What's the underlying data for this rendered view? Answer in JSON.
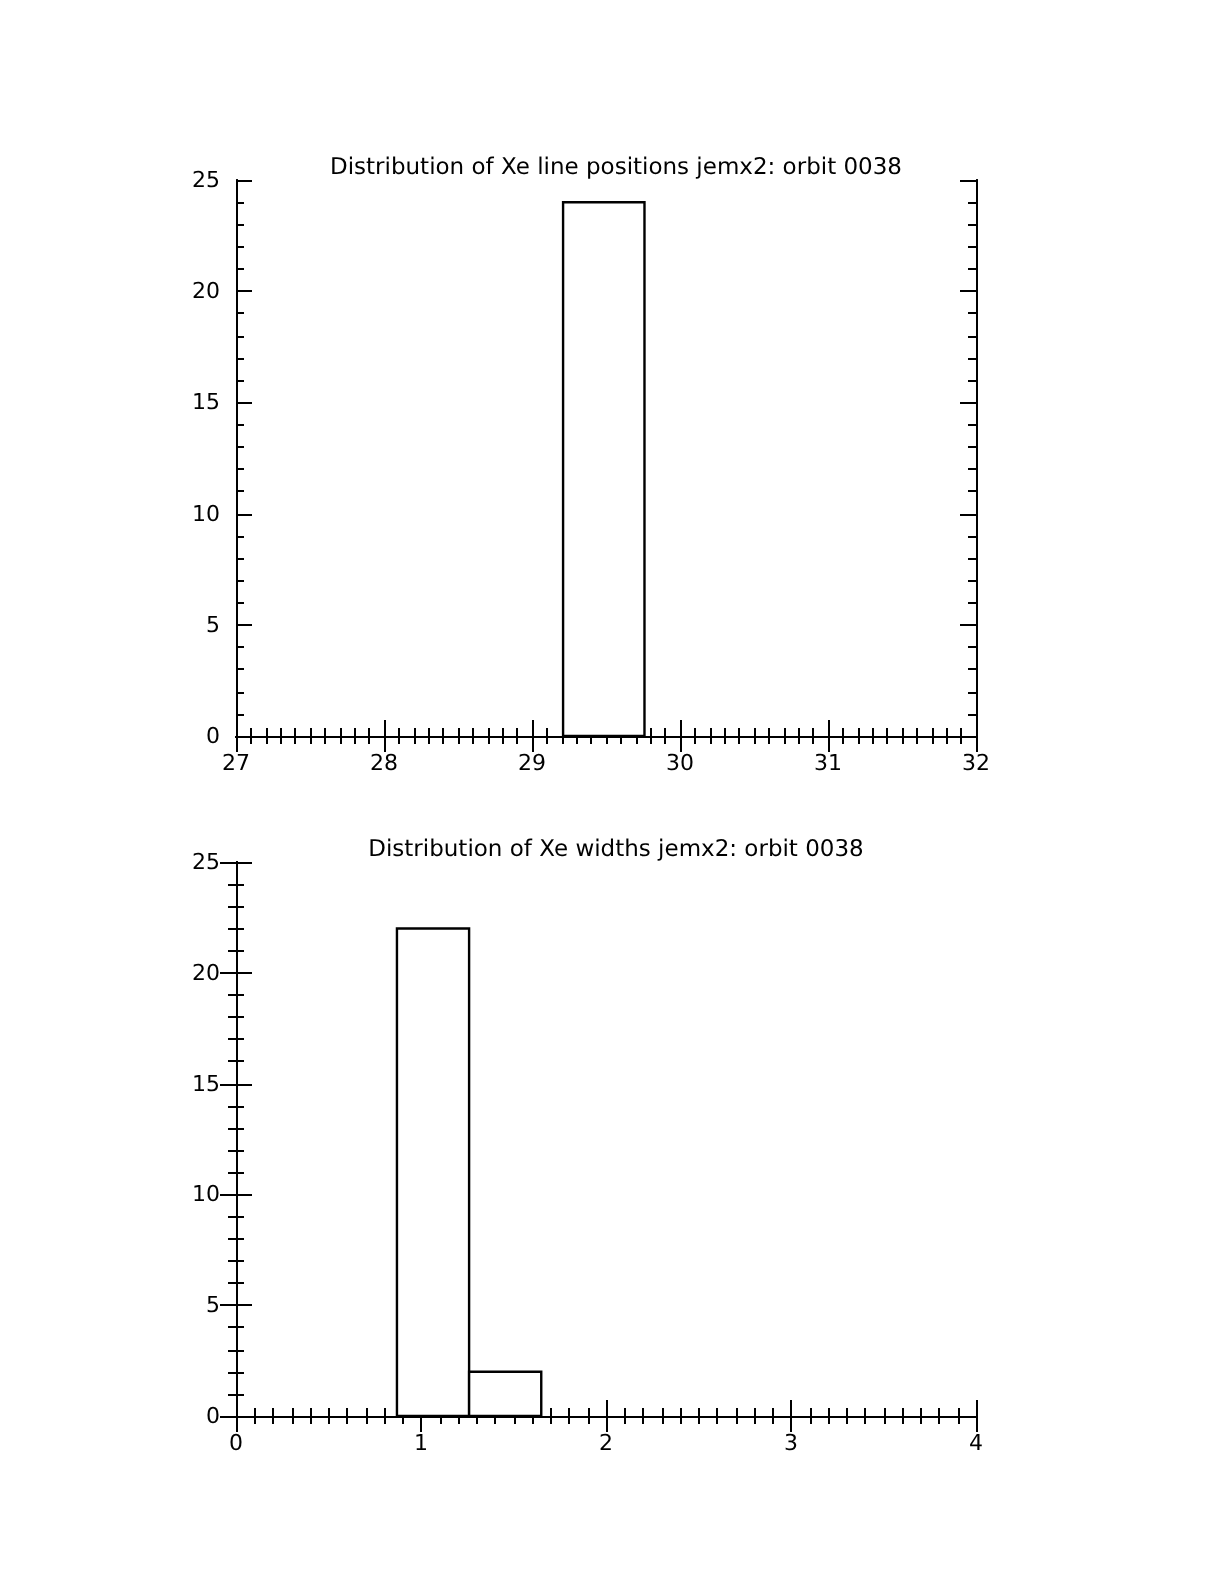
{
  "chart_data": [
    {
      "type": "histogram",
      "title": "Distribution of Xe line positions jemx2: orbit 0038",
      "bins": [
        29.21,
        29.76
      ],
      "values": [
        24
      ],
      "xlim": [
        27,
        32
      ],
      "xticks": [
        27,
        28,
        29,
        30,
        31,
        32
      ],
      "ylim": [
        0,
        25
      ],
      "yticks": [
        0,
        5,
        10,
        15,
        20,
        25
      ]
    },
    {
      "type": "histogram",
      "title": "Distribution of Xe widths jemx2: orbit 0038",
      "bins": [
        0.87,
        1.26,
        1.65
      ],
      "values": [
        22,
        2
      ],
      "xlim": [
        0,
        4
      ],
      "xticks": [
        0,
        1,
        2,
        3,
        4
      ],
      "ylim": [
        0,
        25
      ],
      "yticks": [
        0,
        5,
        10,
        15,
        20,
        25
      ]
    }
  ]
}
